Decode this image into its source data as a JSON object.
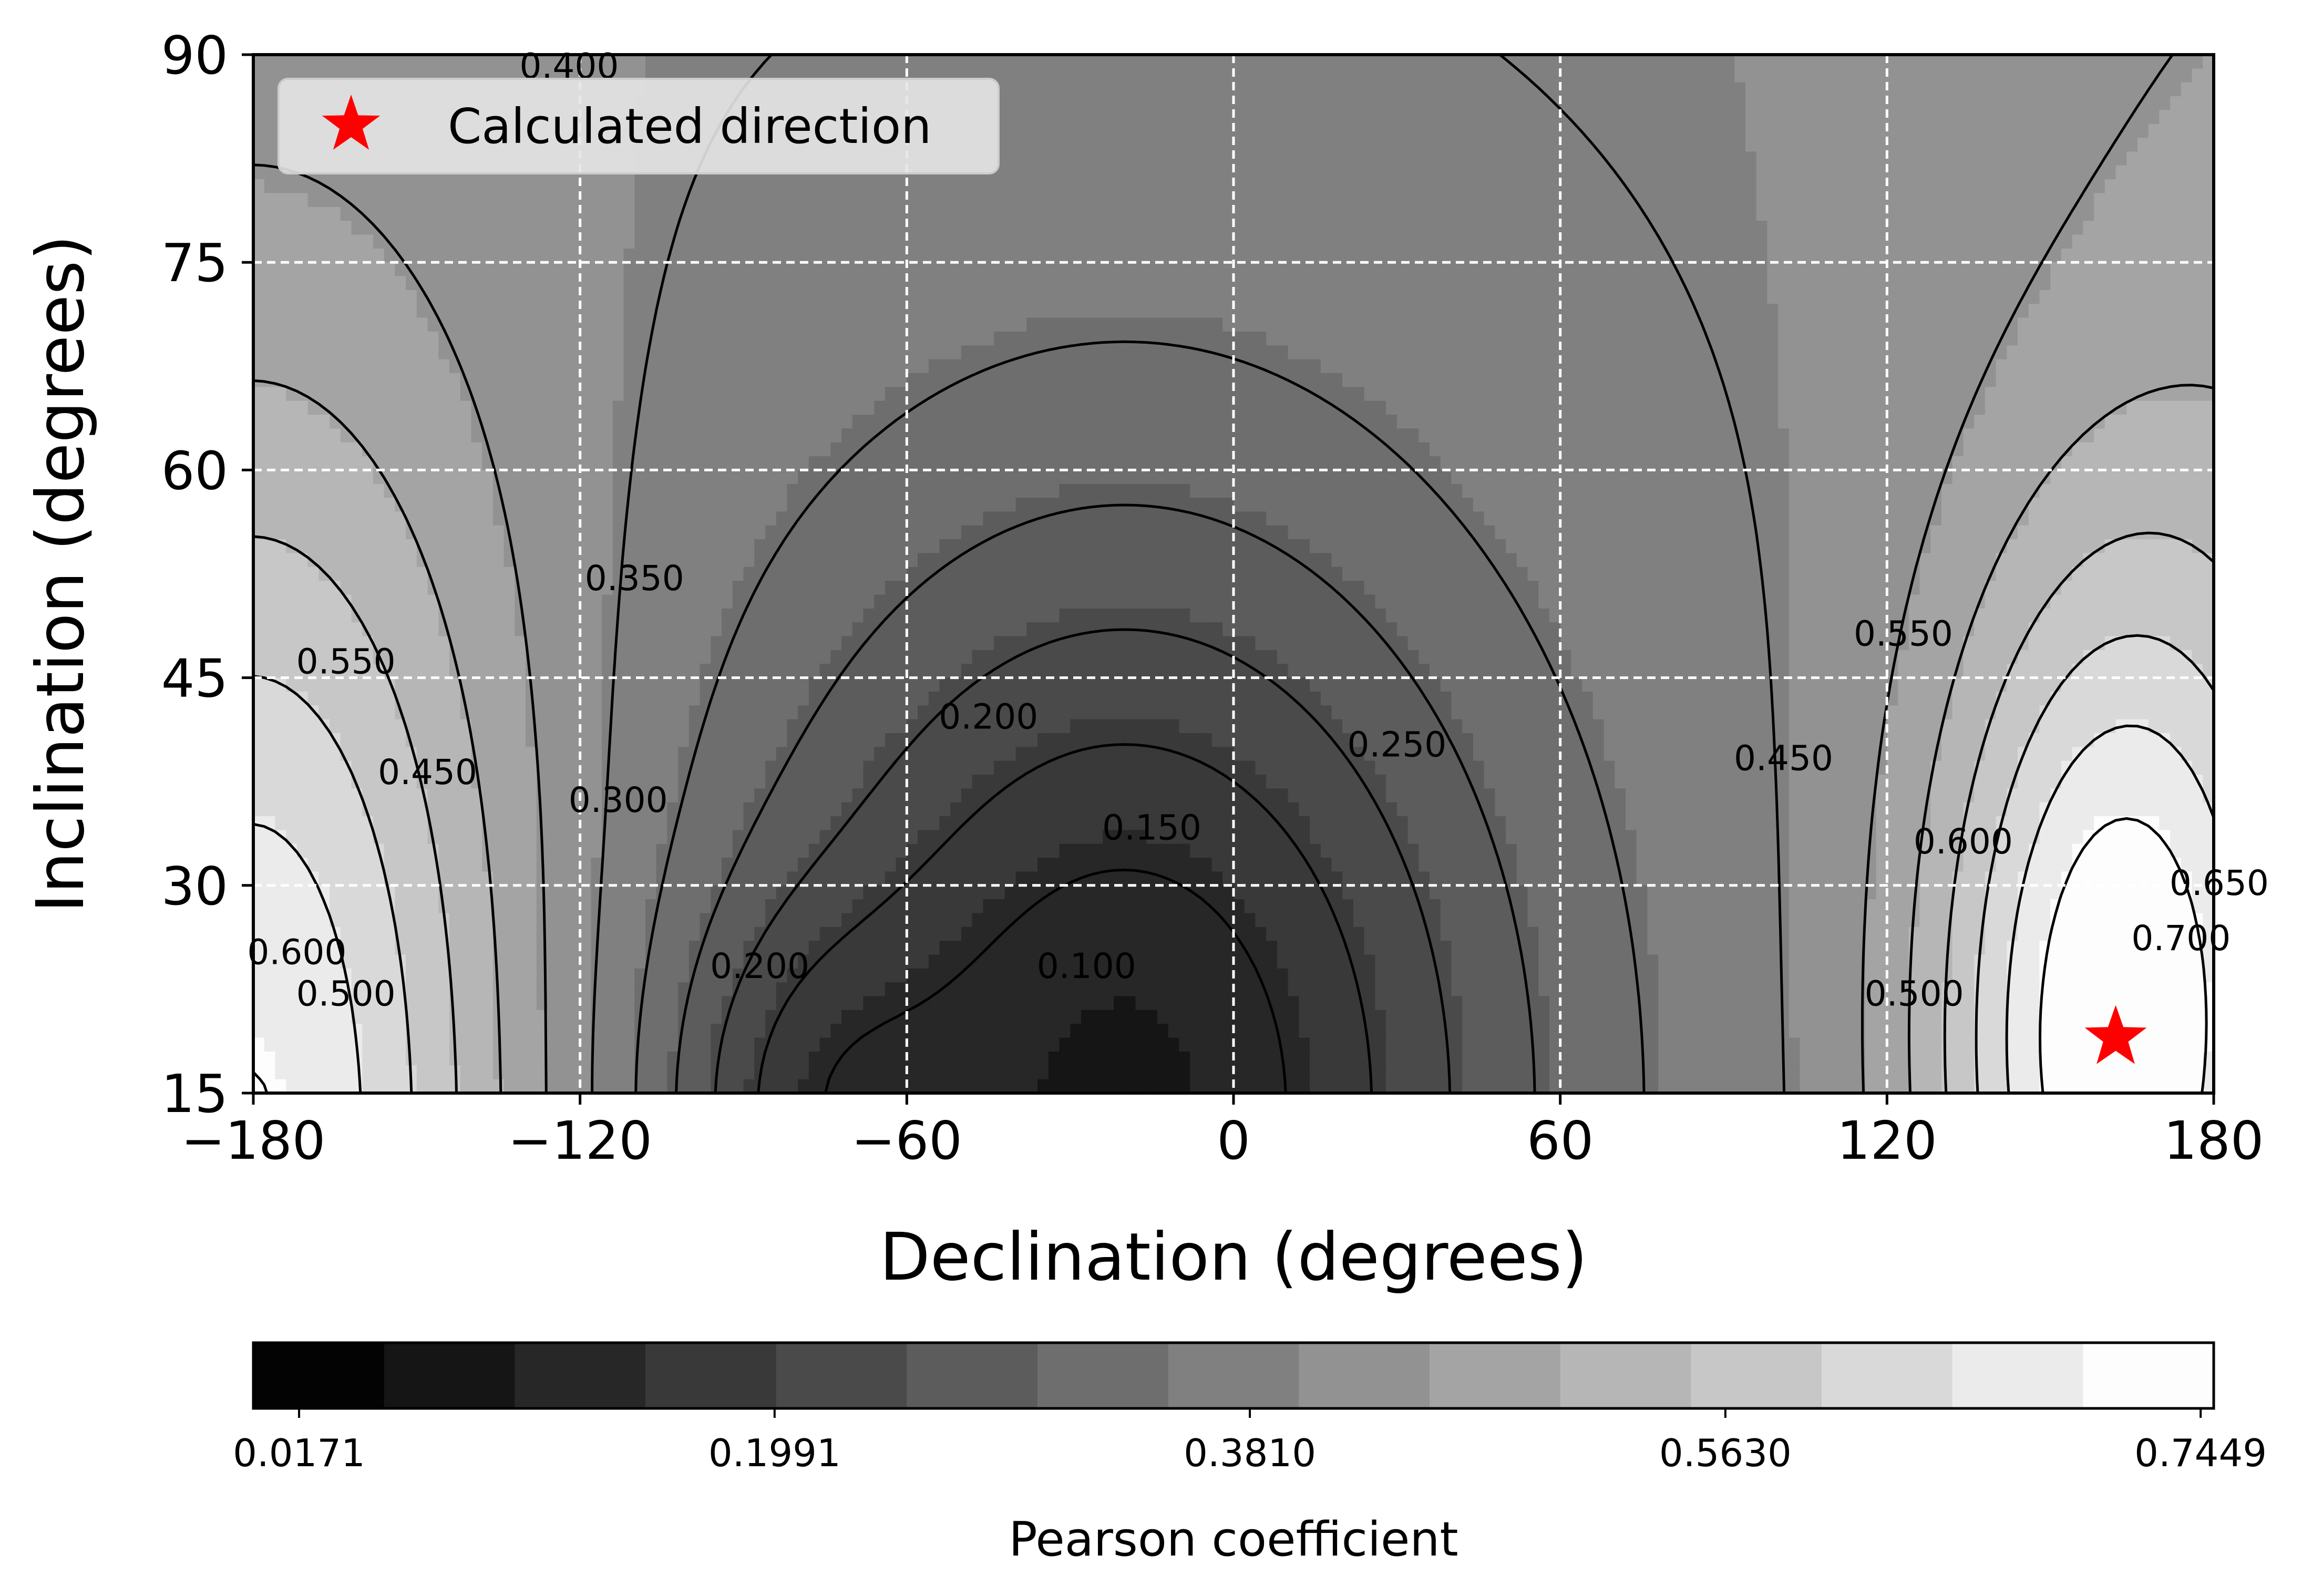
{
  "chart_data": {
    "type": "contour",
    "xlabel": "Declination (degrees)",
    "ylabel": "Inclination (degrees)",
    "xlim": [
      -180,
      180
    ],
    "ylim": [
      15,
      90
    ],
    "xticks": [
      -180,
      -120,
      -60,
      0,
      60,
      120,
      180
    ],
    "xtick_labels": [
      "−180",
      "−120",
      "−60",
      "0",
      "60",
      "120",
      "180"
    ],
    "yticks": [
      15,
      30,
      45,
      60,
      75,
      90
    ],
    "ytick_labels": [
      "15",
      "30",
      "45",
      "60",
      "75",
      "90"
    ],
    "grid": true,
    "grid_style": "dashed white",
    "legend": {
      "placement": "top-left",
      "entries": [
        {
          "label": "Calculated direction",
          "marker": "star",
          "color": "#ff0000"
        }
      ]
    },
    "calculated_direction": {
      "declination": 162,
      "inclination": 19
    },
    "colorbar": {
      "title": "Pearson coefficient",
      "min": 0.0171,
      "max": 0.7449,
      "tick_values": [
        0.0171,
        0.1991,
        0.381,
        0.563,
        0.7449
      ],
      "tick_labels": [
        "0.0171",
        "0.1991",
        "0.3810",
        "0.5630",
        "0.7449"
      ],
      "levels": 15,
      "colormap": "greys"
    },
    "contour_levels": [
      0.05,
      0.1,
      0.15,
      0.2,
      0.25,
      0.3,
      0.35,
      0.4,
      0.45,
      0.5,
      0.55,
      0.6,
      0.65,
      0.7
    ],
    "contour_labels": [
      {
        "text": "0.400",
        "x": -122,
        "y": 89
      },
      {
        "text": "0.350",
        "x": -110,
        "y": 52
      },
      {
        "text": "0.300",
        "x": -113,
        "y": 36
      },
      {
        "text": "0.450",
        "x": -148,
        "y": 38
      },
      {
        "text": "0.550",
        "x": -163,
        "y": 46
      },
      {
        "text": "0.500",
        "x": -163,
        "y": 22
      },
      {
        "text": "0.600",
        "x": -172,
        "y": 25
      },
      {
        "text": "0.200",
        "x": -45,
        "y": 42
      },
      {
        "text": "0.150",
        "x": -15,
        "y": 34
      },
      {
        "text": "0.100",
        "x": -27,
        "y": 24
      },
      {
        "text": "0.200",
        "x": -87,
        "y": 24
      },
      {
        "text": "0.250",
        "x": 30,
        "y": 40
      },
      {
        "text": "0.450",
        "x": 101,
        "y": 39
      },
      {
        "text": "0.550",
        "x": 123,
        "y": 48
      },
      {
        "text": "0.600",
        "x": 134,
        "y": 33
      },
      {
        "text": "0.500",
        "x": 125,
        "y": 22
      },
      {
        "text": "0.700",
        "x": 174,
        "y": 26
      },
      {
        "text": "0.650",
        "x": 181,
        "y": 30
      }
    ]
  }
}
